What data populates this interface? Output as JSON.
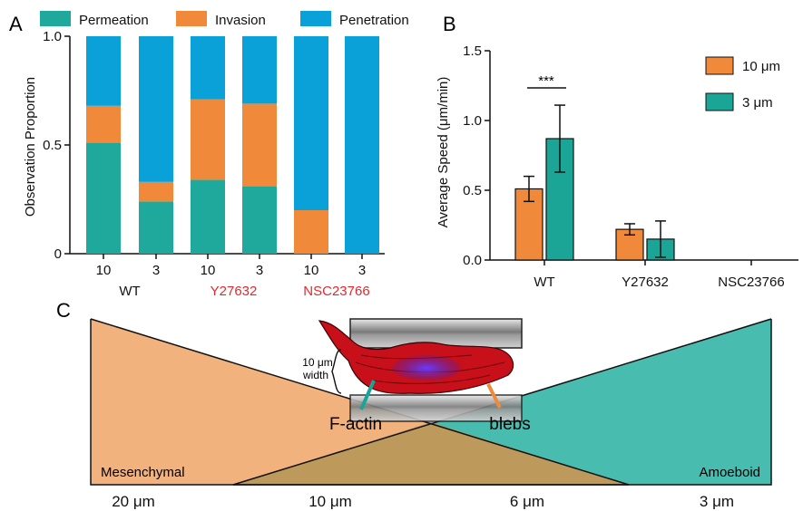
{
  "colors": {
    "permeation": "#1ea99c",
    "invasion": "#f08a3a",
    "penetration": "#0aa0d8",
    "orange_bar": "#f08a3a",
    "teal_bar": "#1aa597",
    "highlight_text": "#e0292f",
    "mesenchymal_fill": "#f2b27e",
    "amoeboid_fill": "#49bcb0",
    "overlap_fill": "#bd9a5c"
  },
  "panels": {
    "a": "A",
    "b": "B",
    "c": "C"
  },
  "chart_data": [
    {
      "type": "bar",
      "stacked": true,
      "ylabel": "Observation Proportion",
      "ylim": [
        0,
        1.0
      ],
      "yticks": [
        "0",
        "0.5",
        "1.0"
      ],
      "categories": [
        "10",
        "3",
        "10",
        "3",
        "10",
        "3"
      ],
      "groups": [
        "WT",
        "Y27632",
        "NSC23766"
      ],
      "group_highlight": [
        false,
        true,
        true
      ],
      "legend_position": "top",
      "series": [
        {
          "name": "Permeation",
          "values": [
            0.51,
            0.24,
            0.34,
            0.31,
            0.0,
            0.0
          ]
        },
        {
          "name": "Invasion",
          "values": [
            0.17,
            0.09,
            0.37,
            0.38,
            0.2,
            0.0
          ]
        },
        {
          "name": "Penetration",
          "values": [
            0.32,
            0.67,
            0.29,
            0.31,
            0.8,
            1.0
          ]
        }
      ]
    },
    {
      "type": "bar",
      "ylabel": "Average Speed (μm/min)",
      "ylim": [
        0,
        1.5
      ],
      "yticks": [
        "0.0",
        "0.5",
        "1.0",
        "1.5"
      ],
      "categories": [
        "WT",
        "Y27632",
        "NSC23766"
      ],
      "category_highlight": [
        false,
        true,
        true
      ],
      "legend_position": "top-right",
      "significance": {
        "label": "***",
        "category": "WT"
      },
      "series": [
        {
          "name": "10 μm",
          "values": [
            0.51,
            0.22,
            null
          ],
          "errors": [
            0.09,
            0.04,
            null
          ]
        },
        {
          "name": "3 μm",
          "values": [
            0.87,
            0.15,
            null
          ],
          "errors": [
            0.24,
            0.13,
            null
          ]
        }
      ]
    }
  ],
  "schematic": {
    "width_label_line1": "10 μm",
    "width_label_line2": "width",
    "factin_label": "F-actin",
    "blebs_label": "blebs",
    "mesenchymal_label": "Mesenchymal",
    "amoeboid_label": "Amoeboid",
    "bottom_labels": [
      "20 μm",
      "10 μm",
      "6 μm",
      "3 μm"
    ]
  }
}
